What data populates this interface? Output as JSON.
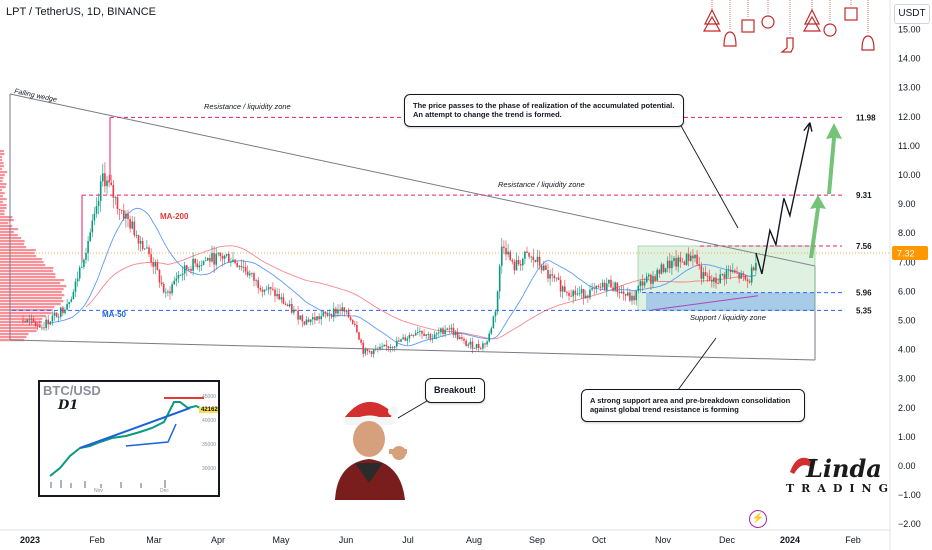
{
  "symbol": {
    "title": "LPT / TetherUS, 1D, BINANCE",
    "currency": "USDT"
  },
  "chart_data": {
    "type": "candlestick",
    "ylim": [
      -2.0,
      15.0
    ],
    "x_ticks": [
      "2023",
      "Feb",
      "Mar",
      "Apr",
      "May",
      "Jun",
      "Jul",
      "Aug",
      "Sep",
      "Oct",
      "Nov",
      "Dec",
      "2024",
      "Feb"
    ],
    "y_ticks": [
      "15.00",
      "14.00",
      "13.00",
      "12.00",
      "11.00",
      "10.00",
      "9.00",
      "8.00",
      "7.00",
      "6.00",
      "5.00",
      "4.00",
      "3.00",
      "2.00",
      "1.00",
      "0.00",
      "−1.00",
      "−2.00"
    ],
    "current_price": "7.32",
    "price_path": [
      [
        "2023-01-01",
        5.0
      ],
      [
        "2023-01-10",
        4.8
      ],
      [
        "2023-01-20",
        5.4
      ],
      [
        "2023-01-25",
        6.0
      ],
      [
        "2023-02-01",
        7.8
      ],
      [
        "2023-02-05",
        8.7
      ],
      [
        "2023-02-08",
        10.0
      ],
      [
        "2023-02-15",
        9.0
      ],
      [
        "2023-02-22",
        8.2
      ],
      [
        "2023-03-01",
        7.4
      ],
      [
        "2023-03-05",
        6.8
      ],
      [
        "2023-03-10",
        5.8
      ],
      [
        "2023-03-15",
        6.5
      ],
      [
        "2023-03-22",
        6.9
      ],
      [
        "2023-03-30",
        7.1
      ],
      [
        "2023-04-08",
        7.2
      ],
      [
        "2023-04-15",
        6.9
      ],
      [
        "2023-04-22",
        6.3
      ],
      [
        "2023-05-01",
        5.9
      ],
      [
        "2023-05-08",
        5.4
      ],
      [
        "2023-05-15",
        5.0
      ],
      [
        "2023-05-22",
        5.1
      ],
      [
        "2023-06-01",
        5.4
      ],
      [
        "2023-06-08",
        4.9
      ],
      [
        "2023-06-12",
        3.9
      ],
      [
        "2023-06-20",
        4.0
      ],
      [
        "2023-06-30",
        4.3
      ],
      [
        "2023-07-08",
        4.7
      ],
      [
        "2023-07-15",
        4.4
      ],
      [
        "2023-07-22",
        4.8
      ],
      [
        "2023-07-30",
        4.2
      ],
      [
        "2023-08-06",
        4.1
      ],
      [
        "2023-08-10",
        4.3
      ],
      [
        "2023-08-14",
        5.5
      ],
      [
        "2023-08-17",
        7.8
      ],
      [
        "2023-08-22",
        6.8
      ],
      [
        "2023-08-28",
        7.2
      ],
      [
        "2023-09-03",
        7.0
      ],
      [
        "2023-09-08",
        6.5
      ],
      [
        "2023-09-15",
        6.1
      ],
      [
        "2023-09-22",
        5.9
      ],
      [
        "2023-09-30",
        6.0
      ],
      [
        "2023-10-07",
        6.3
      ],
      [
        "2023-10-12",
        6.0
      ],
      [
        "2023-10-18",
        5.7
      ],
      [
        "2023-10-22",
        6.3
      ],
      [
        "2023-10-28",
        6.5
      ],
      [
        "2023-11-03",
        6.9
      ],
      [
        "2023-11-10",
        7.0
      ],
      [
        "2023-11-16",
        7.3
      ],
      [
        "2023-11-20",
        6.5
      ],
      [
        "2023-11-26",
        6.3
      ],
      [
        "2023-12-02",
        6.7
      ],
      [
        "2023-12-08",
        6.5
      ],
      [
        "2023-12-12",
        6.3
      ],
      [
        "2023-12-16",
        7.3
      ]
    ],
    "projection_path": [
      [
        7.32
      ],
      [
        6.6
      ],
      [
        8.1
      ],
      [
        7.6
      ],
      [
        9.2
      ],
      [
        8.6
      ],
      [
        11.8
      ]
    ],
    "levels": [
      {
        "label": "11.98",
        "value": 11.98,
        "color": "#e91e63"
      },
      {
        "label": "9.31",
        "value": 9.31,
        "color": "#e91e63"
      },
      {
        "label": "7.56",
        "value": 7.56,
        "color": "#e91e63"
      },
      {
        "label": "5.96",
        "value": 5.96,
        "color": "#2962ff"
      },
      {
        "label": "5.35",
        "value": 5.35,
        "color": "#2962ff"
      }
    ],
    "annotations": {
      "falling_wedge": "Falling wedge",
      "resistance_top": "Resistance / liquidity zone",
      "resistance_mid": "Resistance / liquidity zone",
      "support_zone": "Support / liquidity zone",
      "ma200": "MA-200",
      "ma50": "MA-50"
    },
    "colors": {
      "up": "#089981",
      "down": "#f23645",
      "ma200": "#f7525f",
      "ma50": "#5b9cf6",
      "wedge": "#787b86"
    }
  },
  "callouts": {
    "top": "The price passes to the phase of realization of the accumulated potential. An attempt to change the trend is formed.",
    "bottom": "A strong support area and pre-breakdown consolidation against global trend resistance is forming",
    "breakout": "Breakout!"
  },
  "inset": {
    "title": "BTC/USD",
    "timeframe": "D1",
    "price_tag": "42162",
    "y_labels": [
      "45000",
      "40000",
      "35000",
      "30000"
    ],
    "x_labels": [
      "Nov",
      "Dec"
    ]
  },
  "logo": {
    "line1": "Linda",
    "line2": "TRADING"
  },
  "icons": {
    "decorations": "christmas-ornaments-icon",
    "bolt": "lightning-icon",
    "santa": "santa-hat-icon"
  }
}
